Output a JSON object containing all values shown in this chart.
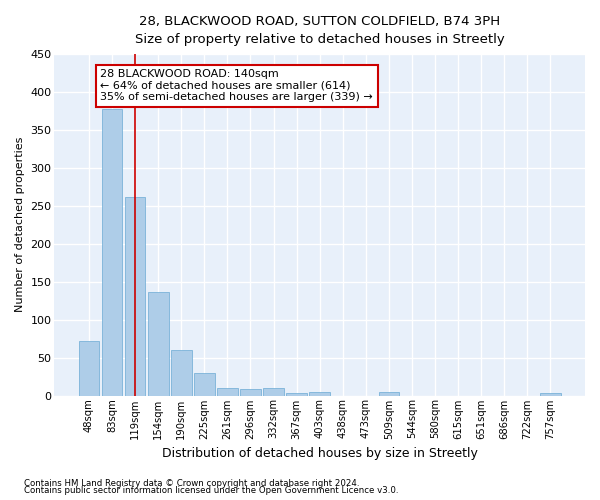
{
  "title_line1": "28, BLACKWOOD ROAD, SUTTON COLDFIELD, B74 3PH",
  "title_line2": "Size of property relative to detached houses in Streetly",
  "xlabel": "Distribution of detached houses by size in Streetly",
  "ylabel": "Number of detached properties",
  "bar_color": "#aecde8",
  "bar_edge_color": "#6aaad4",
  "categories": [
    "48sqm",
    "83sqm",
    "119sqm",
    "154sqm",
    "190sqm",
    "225sqm",
    "261sqm",
    "296sqm",
    "332sqm",
    "367sqm",
    "403sqm",
    "438sqm",
    "473sqm",
    "509sqm",
    "544sqm",
    "580sqm",
    "615sqm",
    "651sqm",
    "686sqm",
    "722sqm",
    "757sqm"
  ],
  "values": [
    72,
    378,
    262,
    137,
    60,
    30,
    10,
    9,
    10,
    3,
    5,
    0,
    0,
    4,
    0,
    0,
    0,
    0,
    0,
    0,
    3
  ],
  "ylim": [
    0,
    450
  ],
  "yticks": [
    0,
    50,
    100,
    150,
    200,
    250,
    300,
    350,
    400,
    450
  ],
  "marker_bar_index": 2,
  "marker_color": "#cc0000",
  "annotation_text": "28 BLACKWOOD ROAD: 140sqm\n← 64% of detached houses are smaller (614)\n35% of semi-detached houses are larger (339) →",
  "annotation_box_color": "white",
  "annotation_box_edge": "#cc0000",
  "bg_color": "#e8f0fa",
  "grid_color": "white",
  "footnote1": "Contains HM Land Registry data © Crown copyright and database right 2024.",
  "footnote2": "Contains public sector information licensed under the Open Government Licence v3.0."
}
